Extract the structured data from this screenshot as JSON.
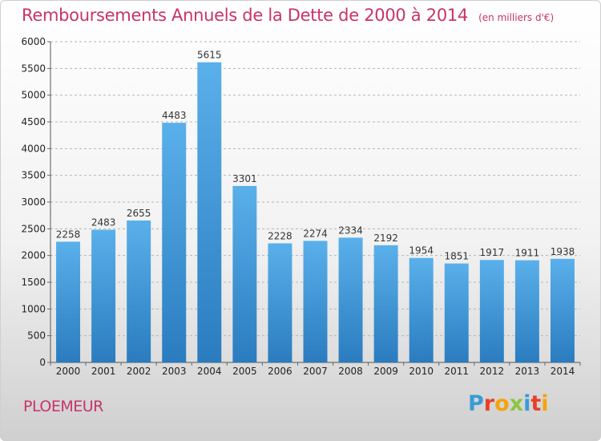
{
  "header": {
    "title": "Remboursements Annuels de la Dette de 2000 à 2014",
    "unit": "(en milliers d'€)"
  },
  "footer": {
    "commune": "PLOEMEUR",
    "brand_letters": [
      {
        "char": "P",
        "color": "#3a9bd5"
      },
      {
        "char": "r",
        "color": "#e8402a"
      },
      {
        "char": "o",
        "color": "#f5a30a"
      },
      {
        "char": "x",
        "color": "#8cc63f"
      },
      {
        "char": "i",
        "color": "#3a9bd5"
      },
      {
        "char": "t",
        "color": "#e8402a"
      },
      {
        "char": "i",
        "color": "#f5a30a"
      }
    ]
  },
  "chart_data": {
    "type": "bar",
    "title": "Remboursements Annuels de la Dette de 2000 à 2014",
    "subtitle": "(en milliers d'€)",
    "categories": [
      "2000",
      "2001",
      "2002",
      "2003",
      "2004",
      "2005",
      "2006",
      "2007",
      "2008",
      "2009",
      "2010",
      "2011",
      "2012",
      "2013",
      "2014"
    ],
    "values": [
      2258,
      2483,
      2655,
      4483,
      5615,
      3301,
      2228,
      2274,
      2334,
      2192,
      1954,
      1851,
      1917,
      1911,
      1938
    ],
    "ylim": [
      0,
      6000
    ],
    "yticks": [
      0,
      500,
      1000,
      1500,
      2000,
      2500,
      3000,
      3500,
      4000,
      4500,
      5000,
      5500,
      6000
    ],
    "grid": "horizontal dashed",
    "bar_color_top": "#5ab0ea",
    "bar_color_bottom": "#2a7cbf",
    "title_color": "#c8336b"
  }
}
